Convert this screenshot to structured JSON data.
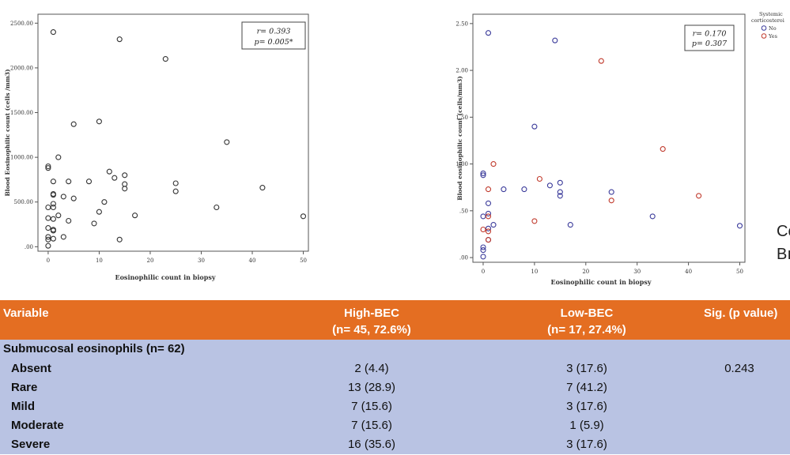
{
  "chart_data": [
    {
      "type": "scatter",
      "title": "",
      "xlabel": "Eosinophilic count in biopsy",
      "ylabel": "Blood Eosinophilic count (cells /mm3)",
      "xlim": [
        -2,
        51
      ],
      "ylim": [
        -50,
        2600
      ],
      "x_ticks": [
        0,
        10,
        20,
        30,
        40,
        50
      ],
      "x_tick_labels": [
        "0",
        "10",
        "20",
        "30",
        "40",
        "50"
      ],
      "y_ticks": [
        0,
        500,
        1000,
        1500,
        2000,
        2500
      ],
      "y_tick_labels": [
        ".00",
        "500.00",
        "1000.00",
        "1500.00",
        "2000.00",
        "2500.00"
      ],
      "grid": false,
      "stats": {
        "r": "r= 0.393",
        "p": "p= 0.005*"
      },
      "series": [
        {
          "color": "#333333",
          "points": [
            [
              1,
              2400
            ],
            [
              14,
              2320
            ],
            [
              23,
              2100
            ],
            [
              10,
              1400
            ],
            [
              5,
              1370
            ],
            [
              35,
              1170
            ],
            [
              2,
              1000
            ],
            [
              0,
              900
            ],
            [
              0,
              880
            ],
            [
              12,
              840
            ],
            [
              15,
              800
            ],
            [
              13,
              770
            ],
            [
              8,
              730
            ],
            [
              1,
              730
            ],
            [
              4,
              730
            ],
            [
              25,
              710
            ],
            [
              15,
              700
            ],
            [
              15,
              650
            ],
            [
              42,
              660
            ],
            [
              25,
              620
            ],
            [
              1,
              590
            ],
            [
              1,
              580
            ],
            [
              3,
              560
            ],
            [
              5,
              540
            ],
            [
              11,
              500
            ],
            [
              1,
              480
            ],
            [
              0,
              440
            ],
            [
              33,
              440
            ],
            [
              1,
              440
            ],
            [
              10,
              390
            ],
            [
              2,
              350
            ],
            [
              17,
              350
            ],
            [
              50,
              340
            ],
            [
              0,
              320
            ],
            [
              1,
              310
            ],
            [
              4,
              290
            ],
            [
              9,
              260
            ],
            [
              0,
              210
            ],
            [
              1,
              190
            ],
            [
              1,
              180
            ],
            [
              0,
              110
            ],
            [
              3,
              110
            ],
            [
              14,
              80
            ],
            [
              1,
              90
            ],
            [
              0,
              80
            ],
            [
              0,
              10
            ]
          ]
        }
      ]
    },
    {
      "type": "scatter",
      "title": "",
      "xlabel": "Eosinophilic count in biopsy",
      "ylabel": "Blood eosinophilic count (cells/mm3)",
      "xlim": [
        -2,
        51
      ],
      "ylim": [
        -0.05,
        2.6
      ],
      "x_ticks": [
        0,
        10,
        20,
        30,
        40,
        50
      ],
      "x_tick_labels": [
        "0",
        "10",
        "20",
        "30",
        "40",
        "50"
      ],
      "y_ticks": [
        0,
        0.5,
        1.0,
        1.5,
        2.0,
        2.5
      ],
      "y_tick_labels": [
        ".00",
        ".50",
        "1.00",
        "1.50",
        "2.00",
        "2.50"
      ],
      "grid": false,
      "stats": {
        "r": "r= 0.170",
        "p": "p= 0.307"
      },
      "legend": {
        "title": "Systemic corticosteroi",
        "placement": "top-right",
        "entries": [
          "No",
          "Yes"
        ]
      },
      "series": [
        {
          "name": "No",
          "color": "#3a3a9a",
          "points": [
            [
              1,
              2.4
            ],
            [
              14,
              2.32
            ],
            [
              10,
              1.4
            ],
            [
              0,
              0.9
            ],
            [
              0,
              0.88
            ],
            [
              15,
              0.8
            ],
            [
              13,
              0.77
            ],
            [
              8,
              0.73
            ],
            [
              4,
              0.73
            ],
            [
              15,
              0.7
            ],
            [
              25,
              0.7
            ],
            [
              15,
              0.66
            ],
            [
              1,
              0.58
            ],
            [
              1,
              0.47
            ],
            [
              0,
              0.44
            ],
            [
              33,
              0.44
            ],
            [
              2,
              0.35
            ],
            [
              17,
              0.35
            ],
            [
              50,
              0.34
            ],
            [
              1,
              0.31
            ],
            [
              1,
              0.19
            ],
            [
              0,
              0.11
            ],
            [
              0,
              0.08
            ],
            [
              0,
              0.01
            ]
          ]
        },
        {
          "name": "Yes",
          "color": "#c0392b",
          "points": [
            [
              23,
              2.1
            ],
            [
              35,
              1.16
            ],
            [
              2,
              1.0
            ],
            [
              11,
              0.84
            ],
            [
              1,
              0.73
            ],
            [
              42,
              0.66
            ],
            [
              25,
              0.61
            ],
            [
              1,
              0.44
            ],
            [
              10,
              0.39
            ],
            [
              0,
              0.3
            ],
            [
              1,
              0.28
            ],
            [
              1,
              0.19
            ]
          ]
        }
      ]
    }
  ],
  "cut_text": {
    "line1": "Co",
    "line2": "Bı"
  },
  "table": {
    "headers": {
      "variable": "Variable",
      "high": "High-BEC",
      "high_n": "(n= 45, 72.6%)",
      "low": "Low-BEC",
      "low_n": "(n= 17, 27.4%)",
      "sig": "Sig. (p value)"
    },
    "section": "Submucosal eosinophils (n= 62)",
    "rows": [
      {
        "label": "Absent",
        "high": "2 (4.4)",
        "low": "3 (17.6)",
        "sig": "0.243"
      },
      {
        "label": "Rare",
        "high": "13 (28.9)",
        "low": "7 (41.2)",
        "sig": ""
      },
      {
        "label": "Mild",
        "high": "7 (15.6)",
        "low": "3 (17.6)",
        "sig": ""
      },
      {
        "label": "Moderate",
        "high": "7 (15.6)",
        "low": "1 (5.9)",
        "sig": ""
      },
      {
        "label": "Severe",
        "high": "16 (35.6)",
        "low": "3 (17.6)",
        "sig": ""
      }
    ]
  }
}
